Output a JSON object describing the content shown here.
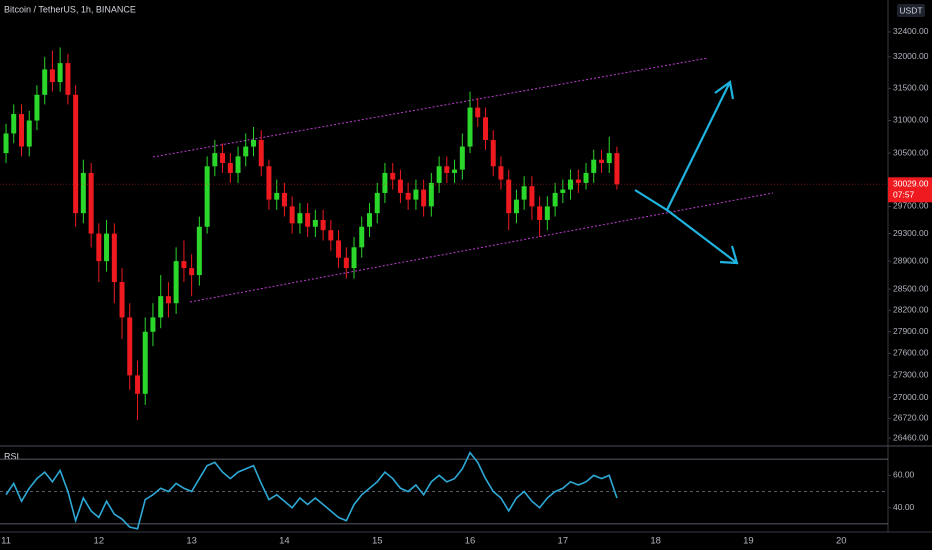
{
  "chart_data": [
    {
      "type": "candlestick",
      "title": "Bitcoin / TetherUS, 1h, BINANCE",
      "currency": "USDT",
      "log": true,
      "up_color": "#2bd72b",
      "down_color": "#ee1a1f",
      "x": [
        11,
        11.083,
        11.167,
        11.25,
        11.333,
        11.417,
        11.5,
        11.583,
        11.667,
        11.75,
        11.833,
        11.917,
        12,
        12.083,
        12.167,
        12.25,
        12.333,
        12.417,
        12.5,
        12.583,
        12.667,
        12.75,
        12.833,
        12.917,
        13,
        13.083,
        13.167,
        13.25,
        13.333,
        13.417,
        13.5,
        13.583,
        13.667,
        13.75,
        13.833,
        13.917,
        14,
        14.083,
        14.167,
        14.25,
        14.333,
        14.417,
        14.5,
        14.583,
        14.667,
        14.75,
        14.833,
        14.917,
        15,
        15.083,
        15.167,
        15.25,
        15.333,
        15.417,
        15.5,
        15.583,
        15.667,
        15.75,
        15.833,
        15.917,
        16,
        16.083,
        16.167,
        16.25,
        16.333,
        16.417,
        16.5,
        16.583,
        16.667,
        16.75,
        16.833,
        16.917,
        17,
        17.083,
        17.167,
        17.25,
        17.333,
        17.417,
        17.5,
        17.583
      ],
      "open": [
        30500,
        30800,
        31100,
        30600,
        31000,
        31400,
        31800,
        31600,
        31900,
        31400,
        29600,
        30200,
        29300,
        28900,
        29300,
        28600,
        28100,
        27300,
        27050,
        27900,
        28100,
        28400,
        28300,
        28900,
        28800,
        28700,
        29400,
        30300,
        30500,
        30350,
        30200,
        30450,
        30600,
        30700,
        30300,
        29800,
        29900,
        29700,
        29450,
        29600,
        29400,
        29500,
        29350,
        29200,
        28950,
        28800,
        29100,
        29400,
        29600,
        29900,
        30200,
        30100,
        29900,
        29800,
        29950,
        29700,
        30050,
        30300,
        30200,
        30250,
        30600,
        31200,
        31050,
        30700,
        30300,
        30100,
        29600,
        29800,
        30000,
        29700,
        29500,
        29700,
        29900,
        29950,
        30100,
        30050,
        30200,
        30400,
        30350,
        30500
      ],
      "high": [
        30950,
        31250,
        31250,
        31150,
        31550,
        32000,
        32100,
        32150,
        32050,
        31550,
        30400,
        30350,
        29450,
        29500,
        29450,
        28800,
        28300,
        27500,
        28100,
        28300,
        28700,
        28600,
        29100,
        29200,
        29000,
        29550,
        30450,
        30700,
        30650,
        30500,
        30600,
        30800,
        30900,
        30850,
        30400,
        30100,
        30050,
        29850,
        29750,
        29750,
        29650,
        29650,
        29500,
        29350,
        29100,
        29250,
        29550,
        29750,
        30050,
        30350,
        30350,
        30250,
        30050,
        30100,
        30100,
        30200,
        30450,
        30450,
        30400,
        30800,
        31450,
        31350,
        31200,
        30850,
        30450,
        30250,
        29950,
        30150,
        30150,
        29850,
        29850,
        30050,
        30100,
        30250,
        30250,
        30350,
        30550,
        30550,
        30750,
        30600
      ],
      "low": [
        30350,
        30650,
        30450,
        30450,
        30850,
        31250,
        31450,
        31450,
        31250,
        29400,
        29450,
        29100,
        28600,
        28750,
        28300,
        27800,
        27100,
        26700,
        26900,
        27700,
        27950,
        28100,
        28150,
        28600,
        28400,
        28550,
        29300,
        30150,
        30200,
        30050,
        30050,
        30300,
        30450,
        30150,
        29650,
        29650,
        29550,
        29300,
        29300,
        29250,
        29250,
        29200,
        29050,
        28800,
        28650,
        28650,
        28950,
        29250,
        29450,
        29750,
        29950,
        29750,
        29650,
        29650,
        29550,
        29550,
        29900,
        30050,
        30050,
        30100,
        30500,
        30900,
        30550,
        30150,
        29950,
        29350,
        29450,
        29650,
        29500,
        29250,
        29350,
        29550,
        29750,
        29800,
        29900,
        29950,
        30050,
        30200,
        30200,
        29950
      ],
      "close": [
        30800,
        31100,
        30600,
        31000,
        31400,
        31800,
        31600,
        31900,
        31400,
        29600,
        30200,
        29300,
        28900,
        29300,
        28600,
        28100,
        27300,
        27050,
        27900,
        28100,
        28400,
        28300,
        28900,
        28800,
        28700,
        29400,
        30300,
        30500,
        30350,
        30200,
        30450,
        30600,
        30700,
        30300,
        29800,
        29900,
        29700,
        29450,
        29600,
        29400,
        29500,
        29350,
        29200,
        28950,
        28800,
        29100,
        29400,
        29600,
        29900,
        30200,
        30100,
        29900,
        29800,
        29950,
        29700,
        30050,
        30300,
        30200,
        30250,
        30600,
        31200,
        31050,
        30700,
        30300,
        30100,
        29600,
        29800,
        30000,
        29700,
        29500,
        29700,
        29900,
        29950,
        30100,
        30050,
        30200,
        30400,
        30350,
        30500,
        30029
      ],
      "last_price": {
        "value": 30029,
        "label": "30029.00"
      },
      "countdown": "07:57",
      "xlim": [
        10.935,
        20.504
      ],
      "xticks": [
        11,
        12,
        13,
        14,
        15,
        16,
        17,
        18,
        19,
        20
      ],
      "ylim": [
        26368,
        32920
      ],
      "yticks": [
        {
          "value": 26460,
          "label": "26460.00"
        },
        {
          "value": 26720,
          "label": "26720.00"
        },
        {
          "value": 27000,
          "label": "27000.00"
        },
        {
          "value": 27300,
          "label": "27300.00"
        },
        {
          "value": 27600,
          "label": "27600.00"
        },
        {
          "value": 27900,
          "label": "27900.00"
        },
        {
          "value": 28200,
          "label": "28200.00"
        },
        {
          "value": 28500,
          "label": "28500.00"
        },
        {
          "value": 28900,
          "label": "28900.00"
        },
        {
          "value": 29300,
          "label": "29300.00"
        },
        {
          "value": 29700,
          "label": "29700.00"
        },
        {
          "value": 30500,
          "label": "30500.00"
        },
        {
          "value": 31000,
          "label": "31000.00"
        },
        {
          "value": 31500,
          "label": "31500.00"
        },
        {
          "value": 32000,
          "label": "32000.00"
        },
        {
          "value": 32400,
          "label": "32400.00"
        }
      ]
    },
    {
      "type": "line",
      "title": "RSI",
      "color": "#2ea9d6",
      "x": [
        11,
        11.083,
        11.167,
        11.25,
        11.333,
        11.417,
        11.5,
        11.583,
        11.667,
        11.75,
        11.833,
        11.917,
        12,
        12.083,
        12.167,
        12.25,
        12.333,
        12.417,
        12.5,
        12.583,
        12.667,
        12.75,
        12.833,
        12.917,
        13,
        13.083,
        13.167,
        13.25,
        13.333,
        13.417,
        13.5,
        13.583,
        13.667,
        13.75,
        13.833,
        13.917,
        14,
        14.083,
        14.167,
        14.25,
        14.333,
        14.417,
        14.5,
        14.583,
        14.667,
        14.75,
        14.833,
        14.917,
        15,
        15.083,
        15.167,
        15.25,
        15.333,
        15.417,
        15.5,
        15.583,
        15.667,
        15.75,
        15.833,
        15.917,
        16,
        16.083,
        16.167,
        16.25,
        16.333,
        16.417,
        16.5,
        16.583,
        16.667,
        16.75,
        16.833,
        16.917,
        17,
        17.083,
        17.167,
        17.25,
        17.333,
        17.417,
        17.5,
        17.583
      ],
      "values": [
        48,
        55,
        44,
        52,
        58,
        62,
        56,
        63,
        50,
        32,
        46,
        38,
        34,
        44,
        36,
        33,
        28,
        27,
        45,
        48,
        52,
        50,
        55,
        52,
        50,
        58,
        66,
        68,
        62,
        58,
        62,
        64,
        66,
        55,
        45,
        48,
        44,
        40,
        46,
        42,
        46,
        42,
        38,
        34,
        32,
        42,
        48,
        52,
        56,
        62,
        58,
        52,
        50,
        54,
        48,
        56,
        60,
        56,
        58,
        64,
        74,
        68,
        58,
        50,
        46,
        38,
        46,
        50,
        44,
        40,
        46,
        50,
        52,
        56,
        54,
        56,
        60,
        58,
        60,
        46
      ],
      "levels": [
        70,
        50,
        30
      ],
      "ylim": [
        25,
        77.5
      ],
      "yticks": [
        {
          "value": 60,
          "label": "60.00"
        },
        {
          "value": 40,
          "label": "40.00"
        }
      ]
    }
  ]
}
